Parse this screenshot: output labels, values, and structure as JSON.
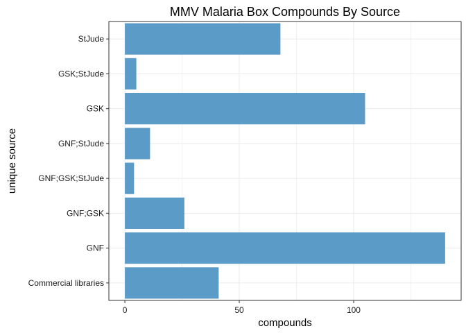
{
  "chart_data": {
    "type": "bar",
    "orientation": "horizontal",
    "title": "MMV Malaria Box Compounds By Source",
    "xlabel": "compounds",
    "ylabel": "unique source",
    "categories": [
      "Commercial libraries",
      "GNF",
      "GNF;GSK",
      "GNF;GSK;StJude",
      "GNF;StJude",
      "GSK",
      "GSK;StJude",
      "StJude"
    ],
    "values": [
      41,
      140,
      26,
      4,
      11,
      105,
      5,
      68
    ],
    "xlim": [
      -7,
      147
    ],
    "xticks": [
      0,
      50,
      100
    ],
    "grid": true,
    "legend": "none",
    "bar_color": "#5b9bc8",
    "panel_border_color": "#333333",
    "grid_color": "#ebebeb"
  }
}
